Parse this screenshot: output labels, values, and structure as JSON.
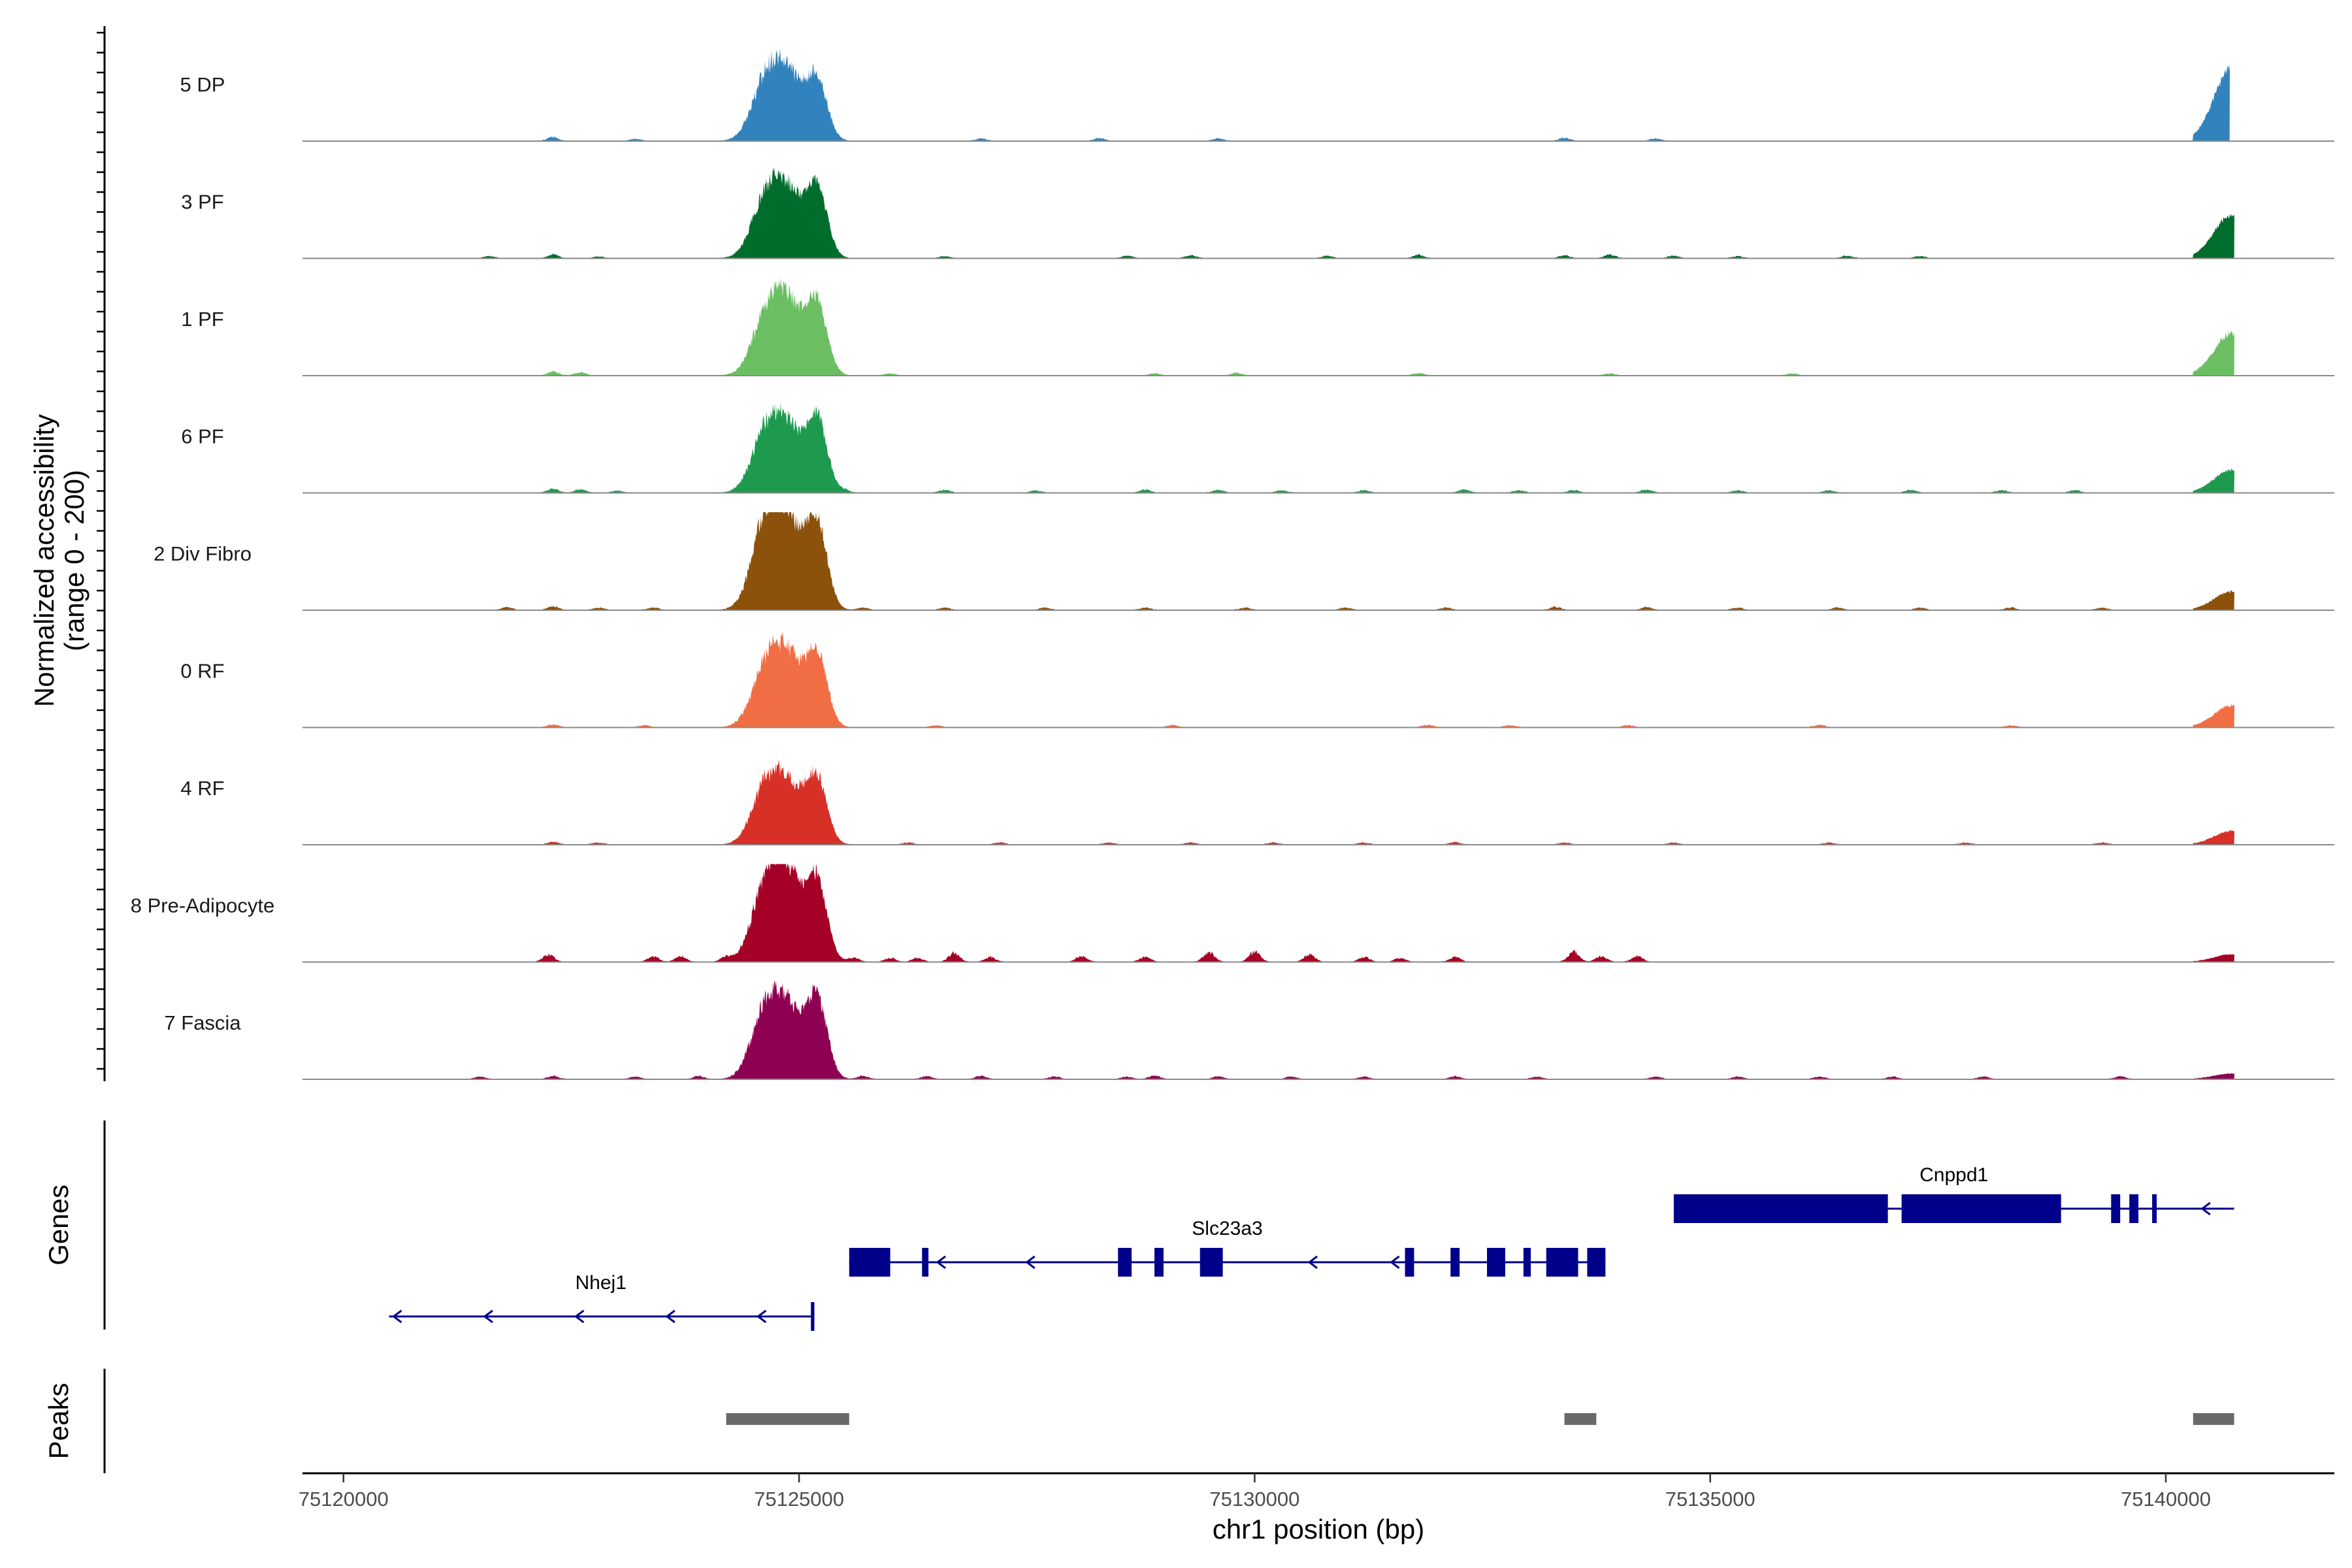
{
  "chart_data": {
    "type": "area",
    "title": "",
    "ylabel_line1": "Normalized accessibility",
    "ylabel_line2": "(range 0 - 200)",
    "yrange": [
      0,
      200
    ],
    "xlabel": "chr1 position (bp)",
    "xlim": [
      75119550,
      75141850
    ],
    "x_ticks": [
      75120000,
      75125000,
      75130000,
      75135000,
      75140000
    ],
    "x_tick_labels": [
      "75120000",
      "75125000",
      "75130000",
      "75135000",
      "75140000"
    ],
    "genes_label": "Genes",
    "peaks_label": "Peaks",
    "tracks": [
      {
        "name": "5 DP",
        "color": "#3182BD",
        "start": 75119550,
        "end": 75140700,
        "heights": {
          "p1a": 148,
          "p1b": 120,
          "p2": 128,
          "right": 160
        },
        "noise": [
          [
            75122300,
            10
          ],
          [
            75123200,
            5
          ],
          [
            75127000,
            6
          ],
          [
            75128300,
            7
          ],
          [
            75129600,
            6
          ],
          [
            75133400,
            8
          ],
          [
            75134400,
            6
          ]
        ]
      },
      {
        "name": "3 PF",
        "color": "#006D2C",
        "start": 75119550,
        "end": 75140750,
        "heights": {
          "p1a": 150,
          "p1b": 120,
          "p2": 150,
          "right": 95
        },
        "noise": [
          [
            75121600,
            5
          ],
          [
            75122300,
            9
          ],
          [
            75122800,
            4
          ],
          [
            75126600,
            5
          ],
          [
            75128600,
            6
          ],
          [
            75129300,
            7
          ],
          [
            75130800,
            6
          ],
          [
            75131800,
            8
          ],
          [
            75133400,
            7
          ],
          [
            75133900,
            9
          ],
          [
            75134600,
            6
          ],
          [
            75135300,
            5
          ],
          [
            75136500,
            6
          ],
          [
            75137300,
            5
          ]
        ]
      },
      {
        "name": "1 PF",
        "color": "#6BBF62",
        "start": 75119550,
        "end": 75140750,
        "heights": {
          "p1a": 170,
          "p1b": 110,
          "p2": 150,
          "right": 92
        },
        "noise": [
          [
            75122300,
            10
          ],
          [
            75122600,
            8
          ],
          [
            75126000,
            5
          ],
          [
            75128900,
            5
          ],
          [
            75129800,
            6
          ],
          [
            75131800,
            6
          ],
          [
            75133900,
            5
          ],
          [
            75135900,
            5
          ]
        ]
      },
      {
        "name": "6 PF",
        "color": "#1E9A4E",
        "start": 75119550,
        "end": 75140750,
        "heights": {
          "p1a": 148,
          "p1b": 120,
          "p2": 155,
          "right": 50
        },
        "noise": [
          [
            75122300,
            10
          ],
          [
            75122600,
            9
          ],
          [
            75123000,
            5
          ],
          [
            75125500,
            6
          ],
          [
            75126600,
            7
          ],
          [
            75127600,
            6
          ],
          [
            75128800,
            8
          ],
          [
            75129600,
            7
          ],
          [
            75130300,
            6
          ],
          [
            75131200,
            6
          ],
          [
            75132300,
            8
          ],
          [
            75132900,
            6
          ],
          [
            75133500,
            7
          ],
          [
            75134300,
            8
          ],
          [
            75135300,
            6
          ],
          [
            75136300,
            6
          ],
          [
            75137200,
            7
          ],
          [
            75138200,
            6
          ],
          [
            75139000,
            6
          ]
        ]
      },
      {
        "name": "2 Div Fibro",
        "color": "#8C510A",
        "start": 75119550,
        "end": 75140750,
        "heights": {
          "p1a": 200,
          "p1b": 175,
          "p2": 180,
          "right": 40
        },
        "noise": [
          [
            75121800,
            7
          ],
          [
            75122300,
            9
          ],
          [
            75122800,
            6
          ],
          [
            75123400,
            6
          ],
          [
            75125700,
            6
          ],
          [
            75126600,
            6
          ],
          [
            75127700,
            6
          ],
          [
            75128800,
            6
          ],
          [
            75129900,
            6
          ],
          [
            75131000,
            6
          ],
          [
            75132100,
            6
          ],
          [
            75133300,
            8
          ],
          [
            75134300,
            7
          ],
          [
            75135300,
            6
          ],
          [
            75136400,
            6
          ],
          [
            75137300,
            6
          ],
          [
            75138300,
            6
          ],
          [
            75139300,
            6
          ]
        ]
      },
      {
        "name": "0 RF",
        "color": "#F16D43",
        "start": 75119550,
        "end": 75140750,
        "heights": {
          "p1a": 160,
          "p1b": 120,
          "p2": 155,
          "right": 48
        },
        "noise": [
          [
            75122300,
            7
          ],
          [
            75123300,
            5
          ],
          [
            75126500,
            5
          ],
          [
            75129100,
            5
          ],
          [
            75131900,
            6
          ],
          [
            75132800,
            5
          ],
          [
            75134100,
            5
          ],
          [
            75136200,
            6
          ],
          [
            75138300,
            5
          ]
        ]
      },
      {
        "name": "4 RF",
        "color": "#D73027",
        "start": 75119550,
        "end": 75140750,
        "heights": {
          "p1a": 138,
          "p1b": 115,
          "p2": 140,
          "right": 30
        },
        "noise": [
          [
            75122300,
            7
          ],
          [
            75122800,
            5
          ],
          [
            75126200,
            5
          ],
          [
            75127200,
            5
          ],
          [
            75128400,
            5
          ],
          [
            75129300,
            5
          ],
          [
            75130200,
            5
          ],
          [
            75131200,
            5
          ],
          [
            75132200,
            6
          ],
          [
            75133400,
            5
          ],
          [
            75134600,
            5
          ],
          [
            75136300,
            5
          ],
          [
            75137800,
            5
          ],
          [
            75139300,
            5
          ]
        ]
      },
      {
        "name": "8 Pre-Adipocyte",
        "color": "#A50026",
        "start": 75119550,
        "end": 75140750,
        "heights": {
          "p1a": 200,
          "p1b": 150,
          "p2": 165,
          "right": 16
        },
        "noise": [
          [
            75122250,
            18
          ],
          [
            75123400,
            14
          ],
          [
            75123700,
            14
          ],
          [
            75124200,
            12
          ],
          [
            75125600,
            10
          ],
          [
            75126000,
            10
          ],
          [
            75126300,
            10
          ],
          [
            75126700,
            22
          ],
          [
            75127100,
            12
          ],
          [
            75128100,
            14
          ],
          [
            75128800,
            12
          ],
          [
            75129500,
            24
          ],
          [
            75130000,
            25
          ],
          [
            75130600,
            18
          ],
          [
            75131200,
            12
          ],
          [
            75131600,
            10
          ],
          [
            75132200,
            12
          ],
          [
            75133500,
            26
          ],
          [
            75133800,
            14
          ],
          [
            75134200,
            14
          ]
        ]
      },
      {
        "name": "7 Fascia",
        "color": "#8E0152",
        "start": 75119550,
        "end": 75140750,
        "heights": {
          "p1a": 160,
          "p1b": 140,
          "p2": 170,
          "right": 12
        },
        "noise": [
          [
            75121500,
            6
          ],
          [
            75122300,
            8
          ],
          [
            75123200,
            6
          ],
          [
            75123900,
            8
          ],
          [
            75125700,
            8
          ],
          [
            75126400,
            7
          ],
          [
            75127000,
            8
          ],
          [
            75127800,
            7
          ],
          [
            75128600,
            6
          ],
          [
            75128900,
            9
          ],
          [
            75129600,
            7
          ],
          [
            75130400,
            6
          ],
          [
            75131200,
            6
          ],
          [
            75132200,
            7
          ],
          [
            75133100,
            6
          ],
          [
            75134400,
            6
          ],
          [
            75135300,
            6
          ],
          [
            75136200,
            6
          ],
          [
            75137000,
            6
          ],
          [
            75138000,
            6
          ],
          [
            75139500,
            7
          ]
        ]
      }
    ],
    "genes": [
      {
        "name": "Nhej1",
        "row": 2,
        "start": 75120500,
        "end": 75125150,
        "strand": "-",
        "exons": [
          [
            75125130,
            75125160
          ]
        ],
        "tss_bar": 75125150,
        "arrows": [
          75120550,
          75121550,
          75122550,
          75123550,
          75124550
        ]
      },
      {
        "name": "Slc23a3",
        "row": 1,
        "start": 75125550,
        "end": 75133850,
        "strand": "-",
        "exons": [
          [
            75125550,
            75126000
          ],
          [
            75126350,
            75126420
          ],
          [
            75128500,
            75128650
          ],
          [
            75128900,
            75129000
          ],
          [
            75129400,
            75129650
          ],
          [
            75131650,
            75131750
          ],
          [
            75132150,
            75132250
          ],
          [
            75132550,
            75132750
          ],
          [
            75132950,
            75133030
          ],
          [
            75133200,
            75133550
          ],
          [
            75133650,
            75133850
          ]
        ],
        "arrows": [
          75126520,
          75127500,
          75128500,
          75130600,
          75131500,
          75133300
        ]
      },
      {
        "name": "Cnppd1",
        "row": 0,
        "start": 75134600,
        "end": 75140750,
        "strand": "-",
        "exons": [
          [
            75134600,
            75136950
          ],
          [
            75137100,
            75138850
          ],
          [
            75139400,
            75139500
          ],
          [
            75139600,
            75139700
          ],
          [
            75139850,
            75139900
          ]
        ],
        "arrows": [
          75140400
        ]
      }
    ],
    "peaks": [
      [
        75124200,
        75125550
      ],
      [
        75133400,
        75133750
      ],
      [
        75140300,
        75140750
      ]
    ]
  }
}
